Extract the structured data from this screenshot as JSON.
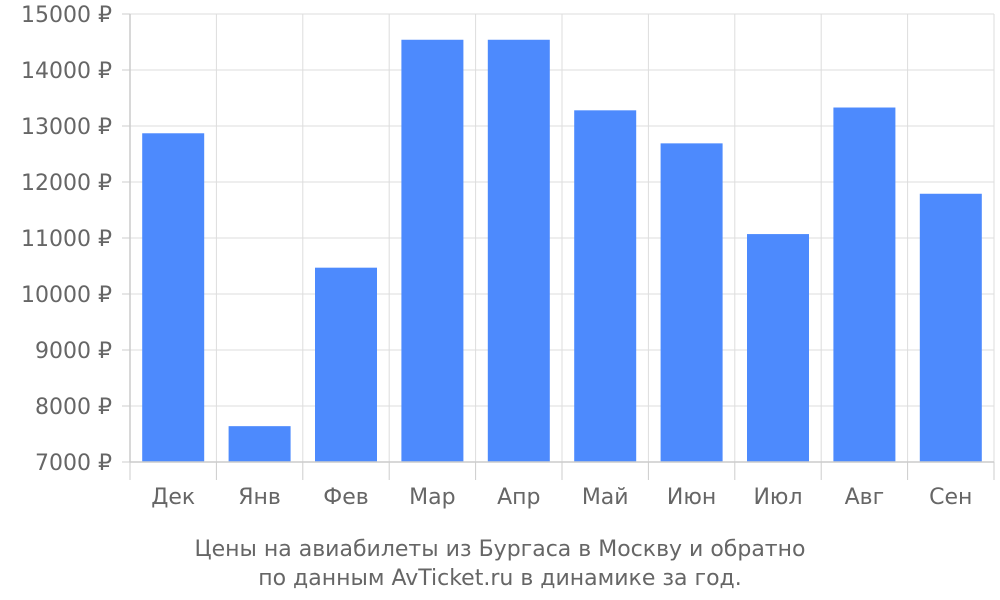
{
  "chart_data": {
    "type": "bar",
    "categories": [
      "Дек",
      "Янв",
      "Фев",
      "Мар",
      "Апр",
      "Май",
      "Июн",
      "Июл",
      "Авг",
      "Сен"
    ],
    "values": [
      12870,
      7640,
      10470,
      14540,
      14540,
      13280,
      12690,
      11070,
      13330,
      11790
    ],
    "yticks": [
      "7000 ₽",
      "8000 ₽",
      "9000 ₽",
      "10000 ₽",
      "11000 ₽",
      "12000 ₽",
      "13000 ₽",
      "14000 ₽",
      "15000 ₽"
    ],
    "ytick_values": [
      7000,
      8000,
      9000,
      10000,
      11000,
      12000,
      13000,
      14000,
      15000
    ],
    "ylim": [
      7000,
      15000
    ],
    "caption_lines": [
      "Цены на авиабилеты из Бургаса в Москву и обратно",
      "по данным AvTicket.ru в динамике за год."
    ],
    "bar_color": "#4d8afd",
    "grid": true
  }
}
